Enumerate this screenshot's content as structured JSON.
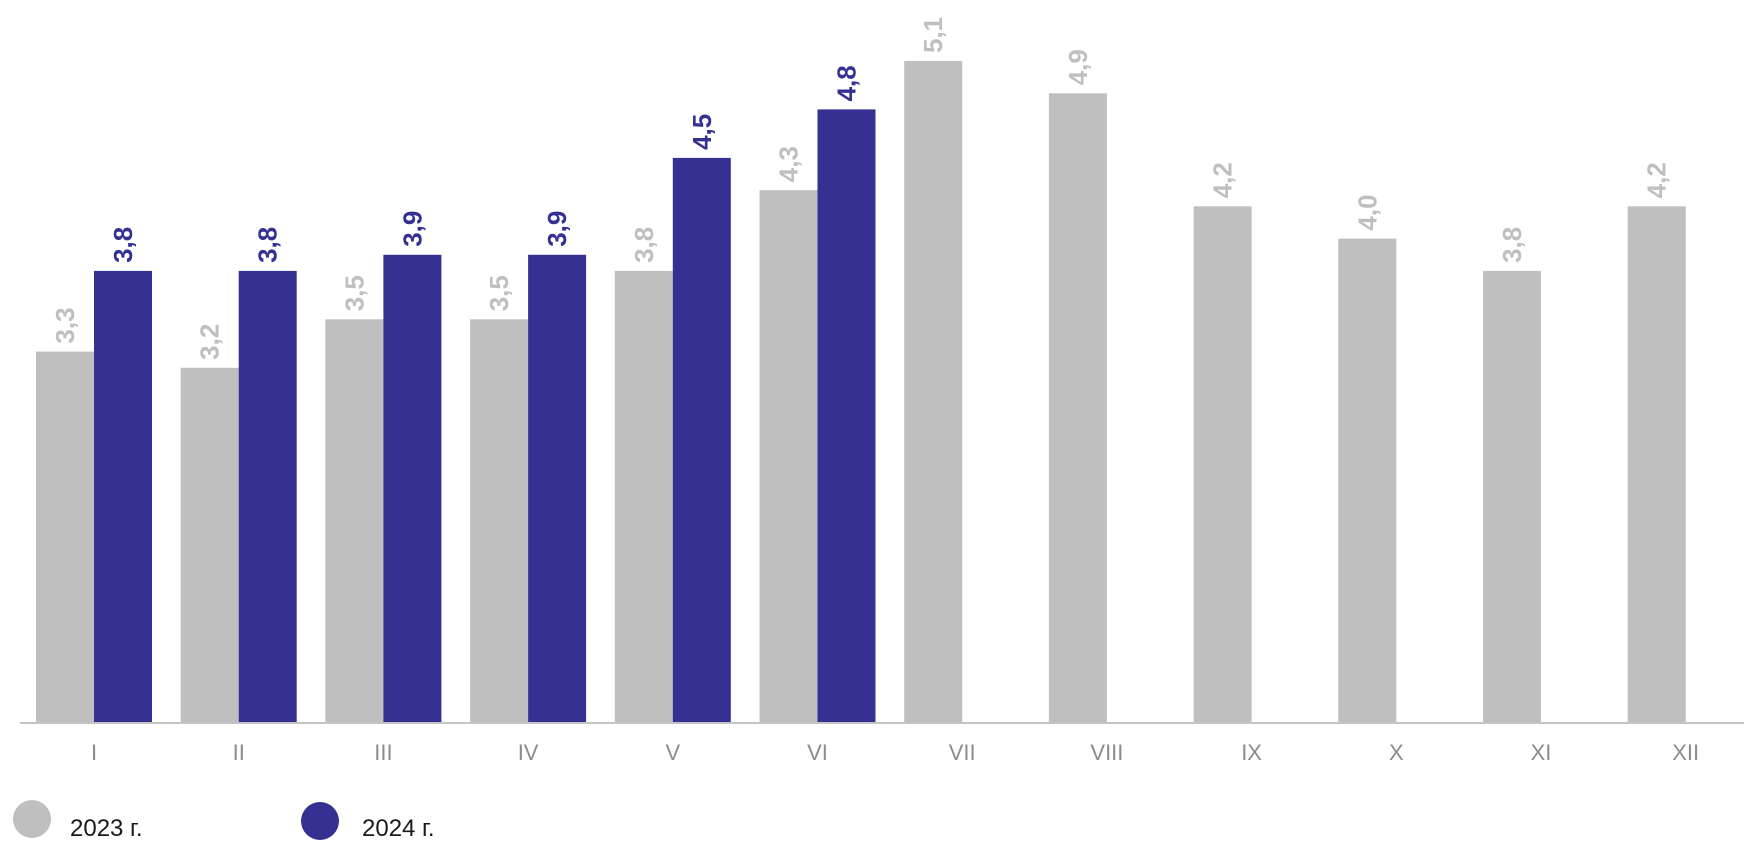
{
  "chart_data": {
    "type": "bar",
    "categories": [
      "I",
      "II",
      "III",
      "IV",
      "V",
      "VI",
      "VII",
      "VIII",
      "IX",
      "X",
      "XI",
      "XII"
    ],
    "series": [
      {
        "name": "2023 г.",
        "color": "#bfbfbf",
        "values": [
          3.3,
          3.2,
          3.5,
          3.5,
          3.8,
          4.3,
          5.1,
          4.9,
          4.2,
          4.0,
          3.8,
          4.2
        ],
        "labels": [
          "3,3",
          "3,2",
          "3,5",
          "3,5",
          "3,8",
          "4,3",
          "5,1",
          "4,9",
          "4,2",
          "4,0",
          "3,8",
          "4,2"
        ]
      },
      {
        "name": "2024 г.",
        "color": "#353192",
        "values": [
          3.8,
          3.8,
          3.9,
          3.9,
          4.5,
          4.8,
          null,
          null,
          null,
          null,
          null,
          null
        ],
        "labels": [
          "3,8",
          "3,8",
          "3,9",
          "3,9",
          "4,5",
          "4,8",
          null,
          null,
          null,
          null,
          null,
          null
        ]
      }
    ],
    "title": "",
    "xlabel": "",
    "ylabel": "",
    "ylim": [
      1.0,
      5.1
    ],
    "grid": false,
    "legend_position": "bottom-left",
    "label_rotation": "vertical"
  }
}
